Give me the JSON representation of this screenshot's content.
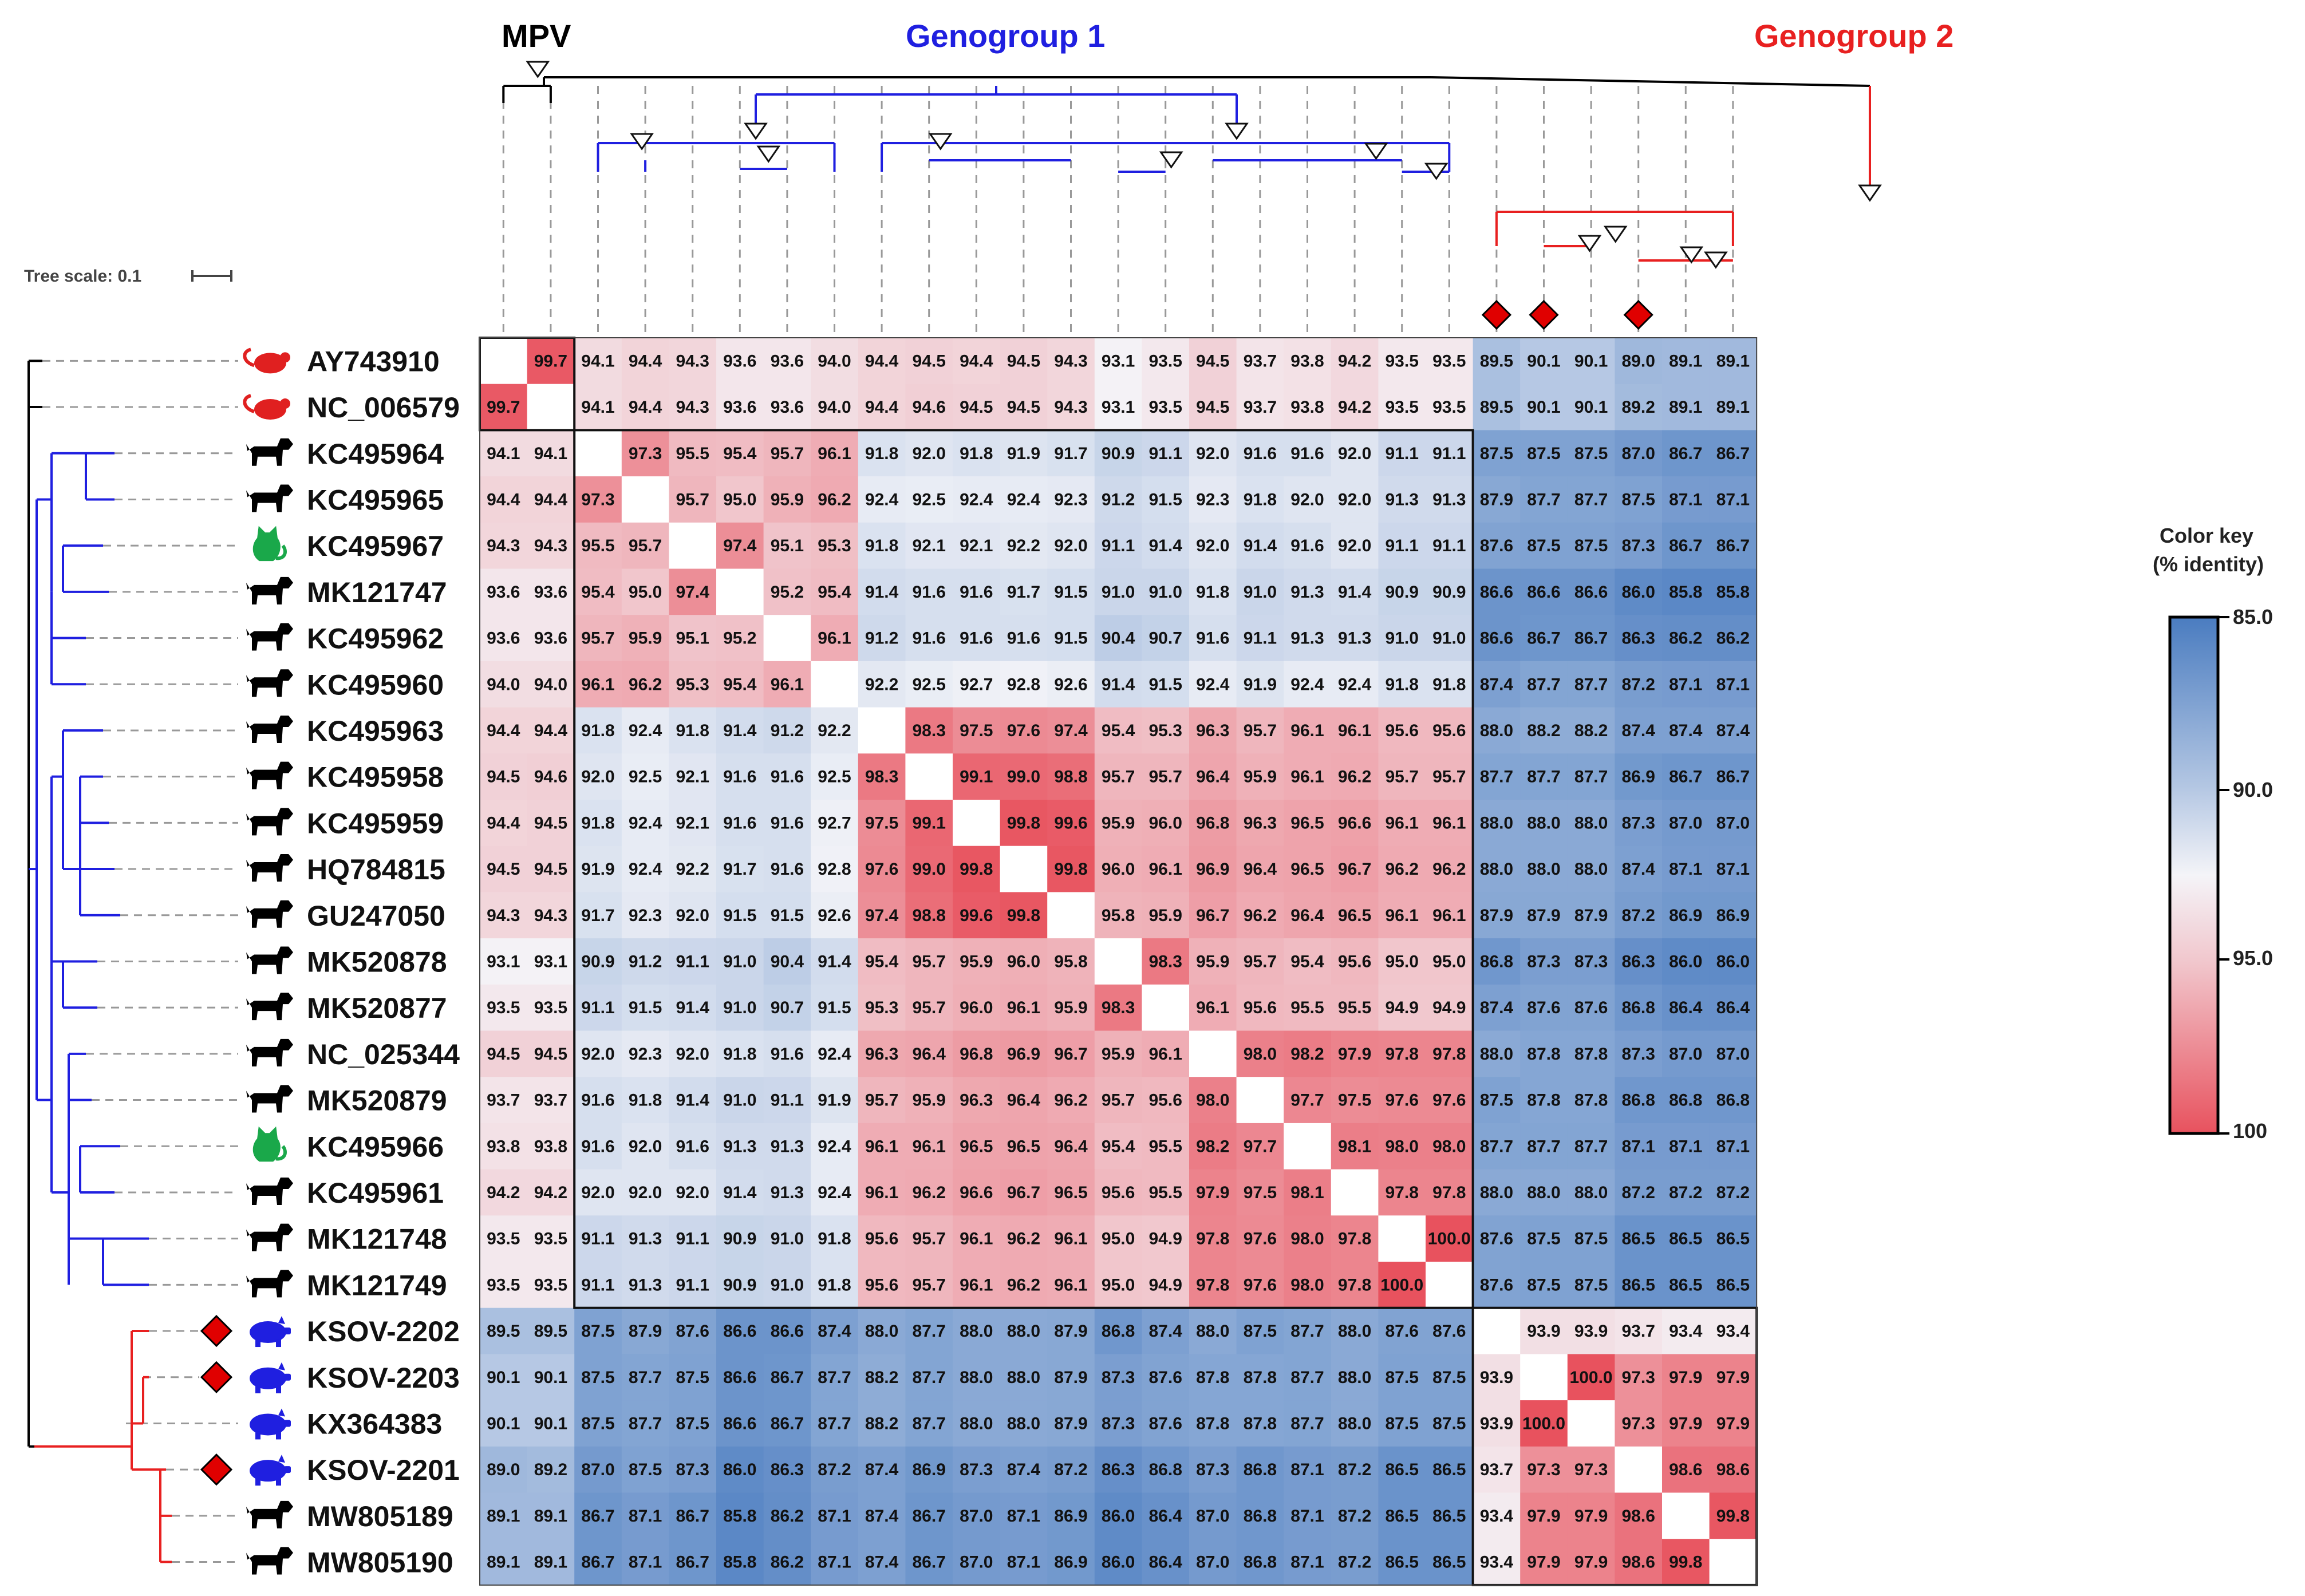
{
  "figure": {
    "clade_labels": {
      "mpv": "MPV",
      "genogroup1": "Genogroup 1",
      "genogroup2": "Genogroup 2"
    },
    "tree_scale_label": "Tree scale: 0.1",
    "color_key": {
      "title_line1": "Color key",
      "title_line2": "(% identity)",
      "ticks": [
        "85.0",
        "90.0",
        "95.0",
        "100"
      ]
    },
    "colors": {
      "mpv": "#000000",
      "genogroup1": "#1f1fe0",
      "genogroup2": "#e82020",
      "high_identity": "#e8525e",
      "mid_identity": "#f4f4f8",
      "low_identity": "#4a7cc0",
      "rodent_icon": "#e02020",
      "dog_icon": "#000000",
      "cat_icon": "#1aa84a",
      "pig_icon": "#1f1fe0",
      "diamond": "#e00000"
    }
  },
  "chart_data": {
    "type": "heatmap",
    "title": "",
    "value_range": [
      85.0,
      100.0
    ],
    "labels": [
      "AY743910",
      "NC_006579",
      "KC495964",
      "KC495965",
      "KC495967",
      "MK121747",
      "KC495962",
      "KC495960",
      "KC495963",
      "KC495958",
      "KC495959",
      "HQ784815",
      "GU247050",
      "MK520878",
      "MK520877",
      "NC_025344",
      "MK520879",
      "KC495966",
      "KC495961",
      "MK121748",
      "MK121749",
      "KSOV-2202",
      "KSOV-2203",
      "KX364383",
      "KSOV-2201",
      "MW805189",
      "MW805190"
    ],
    "host_icons": [
      "rodent-icon",
      "rodent-icon",
      "dog-icon",
      "dog-icon",
      "cat-icon",
      "dog-icon",
      "dog-icon",
      "dog-icon",
      "dog-icon",
      "dog-icon",
      "dog-icon",
      "dog-icon",
      "dog-icon",
      "dog-icon",
      "dog-icon",
      "dog-icon",
      "dog-icon",
      "cat-icon",
      "dog-icon",
      "dog-icon",
      "dog-icon",
      "pig-icon",
      "pig-icon",
      "pig-icon",
      "pig-icon",
      "dog-icon",
      "dog-icon"
    ],
    "diamond_marked": [
      "KSOV-2202",
      "KSOV-2203",
      "KSOV-2201"
    ],
    "groups": [
      {
        "name": "MPV",
        "members": [
          "AY743910",
          "NC_006579"
        ]
      },
      {
        "name": "Genogroup 1",
        "members": [
          "KC495964",
          "KC495965",
          "KC495967",
          "MK121747",
          "KC495962",
          "KC495960",
          "KC495963",
          "KC495958",
          "KC495959",
          "HQ784815",
          "GU247050",
          "MK520878",
          "MK520877",
          "NC_025344",
          "MK520879",
          "KC495966",
          "KC495961",
          "MK121748",
          "MK121749"
        ]
      },
      {
        "name": "Genogroup 2",
        "members": [
          "KSOV-2202",
          "KSOV-2203",
          "KX364383",
          "KSOV-2201",
          "MW805189",
          "MW805190"
        ]
      }
    ],
    "matrix": [
      [
        null,
        99.7,
        94.1,
        94.4,
        94.3,
        93.6,
        93.6,
        94.0,
        94.4,
        94.5,
        94.4,
        94.5,
        94.3,
        93.1,
        93.5,
        94.5,
        93.7,
        93.8,
        94.2,
        93.5,
        93.5,
        89.5,
        90.1,
        90.1,
        89.0,
        89.1,
        89.1
      ],
      [
        99.7,
        null,
        94.1,
        94.4,
        94.3,
        93.6,
        93.6,
        94.0,
        94.4,
        94.6,
        94.5,
        94.5,
        94.3,
        93.1,
        93.5,
        94.5,
        93.7,
        93.8,
        94.2,
        93.5,
        93.5,
        89.5,
        90.1,
        90.1,
        89.2,
        89.1,
        89.1
      ],
      [
        94.1,
        94.1,
        null,
        97.3,
        95.5,
        95.4,
        95.7,
        96.1,
        91.8,
        92.0,
        91.8,
        91.9,
        91.7,
        90.9,
        91.1,
        92.0,
        91.6,
        91.6,
        92.0,
        91.1,
        91.1,
        87.5,
        87.5,
        87.5,
        87.0,
        86.7,
        86.7
      ],
      [
        94.4,
        94.4,
        97.3,
        null,
        95.7,
        95.0,
        95.9,
        96.2,
        92.4,
        92.5,
        92.4,
        92.4,
        92.3,
        91.2,
        91.5,
        92.3,
        91.8,
        92.0,
        92.0,
        91.3,
        91.3,
        87.9,
        87.7,
        87.7,
        87.5,
        87.1,
        87.1
      ],
      [
        94.3,
        94.3,
        95.5,
        95.7,
        null,
        97.4,
        95.1,
        95.3,
        91.8,
        92.1,
        92.1,
        92.2,
        92.0,
        91.1,
        91.4,
        92.0,
        91.4,
        91.6,
        92.0,
        91.1,
        91.1,
        87.6,
        87.5,
        87.5,
        87.3,
        86.7,
        86.7
      ],
      [
        93.6,
        93.6,
        95.4,
        95.0,
        97.4,
        null,
        95.2,
        95.4,
        91.4,
        91.6,
        91.6,
        91.7,
        91.5,
        91.0,
        91.0,
        91.8,
        91.0,
        91.3,
        91.4,
        90.9,
        90.9,
        86.6,
        86.6,
        86.6,
        86.0,
        85.8,
        85.8
      ],
      [
        93.6,
        93.6,
        95.7,
        95.9,
        95.1,
        95.2,
        null,
        96.1,
        91.2,
        91.6,
        91.6,
        91.6,
        91.5,
        90.4,
        90.7,
        91.6,
        91.1,
        91.3,
        91.3,
        91.0,
        91.0,
        86.6,
        86.7,
        86.7,
        86.3,
        86.2,
        86.2
      ],
      [
        94.0,
        94.0,
        96.1,
        96.2,
        95.3,
        95.4,
        96.1,
        null,
        92.2,
        92.5,
        92.7,
        92.8,
        92.6,
        91.4,
        91.5,
        92.4,
        91.9,
        92.4,
        92.4,
        91.8,
        91.8,
        87.4,
        87.7,
        87.7,
        87.2,
        87.1,
        87.1
      ],
      [
        94.4,
        94.4,
        91.8,
        92.4,
        91.8,
        91.4,
        91.2,
        92.2,
        null,
        98.3,
        97.5,
        97.6,
        97.4,
        95.4,
        95.3,
        96.3,
        95.7,
        96.1,
        96.1,
        95.6,
        95.6,
        88.0,
        88.2,
        88.2,
        87.4,
        87.4,
        87.4
      ],
      [
        94.5,
        94.6,
        92.0,
        92.5,
        92.1,
        91.6,
        91.6,
        92.5,
        98.3,
        null,
        99.1,
        99.0,
        98.8,
        95.7,
        95.7,
        96.4,
        95.9,
        96.1,
        96.2,
        95.7,
        95.7,
        87.7,
        87.7,
        87.7,
        86.9,
        86.7,
        86.7
      ],
      [
        94.4,
        94.5,
        91.8,
        92.4,
        92.1,
        91.6,
        91.6,
        92.7,
        97.5,
        99.1,
        null,
        99.8,
        99.6,
        95.9,
        96.0,
        96.8,
        96.3,
        96.5,
        96.6,
        96.1,
        96.1,
        88.0,
        88.0,
        88.0,
        87.3,
        87.0,
        87.0
      ],
      [
        94.5,
        94.5,
        91.9,
        92.4,
        92.2,
        91.7,
        91.6,
        92.8,
        97.6,
        99.0,
        99.8,
        null,
        99.8,
        96.0,
        96.1,
        96.9,
        96.4,
        96.5,
        96.7,
        96.2,
        96.2,
        88.0,
        88.0,
        88.0,
        87.4,
        87.1,
        87.1
      ],
      [
        94.3,
        94.3,
        91.7,
        92.3,
        92.0,
        91.5,
        91.5,
        92.6,
        97.4,
        98.8,
        99.6,
        99.8,
        null,
        95.8,
        95.9,
        96.7,
        96.2,
        96.4,
        96.5,
        96.1,
        96.1,
        87.9,
        87.9,
        87.9,
        87.2,
        86.9,
        86.9
      ],
      [
        93.1,
        93.1,
        90.9,
        91.2,
        91.1,
        91.0,
        90.4,
        91.4,
        95.4,
        95.7,
        95.9,
        96.0,
        95.8,
        null,
        98.3,
        95.9,
        95.7,
        95.4,
        95.6,
        95.0,
        95.0,
        86.8,
        87.3,
        87.3,
        86.3,
        86.0,
        86.0
      ],
      [
        93.5,
        93.5,
        91.1,
        91.5,
        91.4,
        91.0,
        90.7,
        91.5,
        95.3,
        95.7,
        96.0,
        96.1,
        95.9,
        98.3,
        null,
        96.1,
        95.6,
        95.5,
        95.5,
        94.9,
        94.9,
        87.4,
        87.6,
        87.6,
        86.8,
        86.4,
        86.4
      ],
      [
        94.5,
        94.5,
        92.0,
        92.3,
        92.0,
        91.8,
        91.6,
        92.4,
        96.3,
        96.4,
        96.8,
        96.9,
        96.7,
        95.9,
        96.1,
        null,
        98.0,
        98.2,
        97.9,
        97.8,
        97.8,
        88.0,
        87.8,
        87.8,
        87.3,
        87.0,
        87.0
      ],
      [
        93.7,
        93.7,
        91.6,
        91.8,
        91.4,
        91.0,
        91.1,
        91.9,
        95.7,
        95.9,
        96.3,
        96.4,
        96.2,
        95.7,
        95.6,
        98.0,
        null,
        97.7,
        97.5,
        97.6,
        97.6,
        87.5,
        87.8,
        87.8,
        86.8,
        86.8,
        86.8
      ],
      [
        93.8,
        93.8,
        91.6,
        92.0,
        91.6,
        91.3,
        91.3,
        92.4,
        96.1,
        96.1,
        96.5,
        96.5,
        96.4,
        95.4,
        95.5,
        98.2,
        97.7,
        null,
        98.1,
        98.0,
        98.0,
        87.7,
        87.7,
        87.7,
        87.1,
        87.1,
        87.1
      ],
      [
        94.2,
        94.2,
        92.0,
        92.0,
        92.0,
        91.4,
        91.3,
        92.4,
        96.1,
        96.2,
        96.6,
        96.7,
        96.5,
        95.6,
        95.5,
        97.9,
        97.5,
        98.1,
        null,
        97.8,
        97.8,
        88.0,
        88.0,
        88.0,
        87.2,
        87.2,
        87.2
      ],
      [
        93.5,
        93.5,
        91.1,
        91.3,
        91.1,
        90.9,
        91.0,
        91.8,
        95.6,
        95.7,
        96.1,
        96.2,
        96.1,
        95.0,
        94.9,
        97.8,
        97.6,
        98.0,
        97.8,
        null,
        100.0,
        87.6,
        87.5,
        87.5,
        86.5,
        86.5,
        86.5
      ],
      [
        93.5,
        93.5,
        91.1,
        91.3,
        91.1,
        90.9,
        91.0,
        91.8,
        95.6,
        95.7,
        96.1,
        96.2,
        96.1,
        95.0,
        94.9,
        97.8,
        97.6,
        98.0,
        97.8,
        100.0,
        null,
        87.6,
        87.5,
        87.5,
        86.5,
        86.5,
        86.5
      ],
      [
        89.5,
        89.5,
        87.5,
        87.9,
        87.6,
        86.6,
        86.6,
        87.4,
        88.0,
        87.7,
        88.0,
        88.0,
        87.9,
        86.8,
        87.4,
        88.0,
        87.5,
        87.7,
        88.0,
        87.6,
        87.6,
        null,
        93.9,
        93.9,
        93.7,
        93.4,
        93.4
      ],
      [
        90.1,
        90.1,
        87.5,
        87.7,
        87.5,
        86.6,
        86.7,
        87.7,
        88.2,
        87.7,
        88.0,
        88.0,
        87.9,
        87.3,
        87.6,
        87.8,
        87.8,
        87.7,
        88.0,
        87.5,
        87.5,
        93.9,
        null,
        100.0,
        97.3,
        97.9,
        97.9
      ],
      [
        90.1,
        90.1,
        87.5,
        87.7,
        87.5,
        86.6,
        86.7,
        87.7,
        88.2,
        87.7,
        88.0,
        88.0,
        87.9,
        87.3,
        87.6,
        87.8,
        87.8,
        87.7,
        88.0,
        87.5,
        87.5,
        93.9,
        100.0,
        null,
        97.3,
        97.9,
        97.9
      ],
      [
        89.0,
        89.2,
        87.0,
        87.5,
        87.3,
        86.0,
        86.3,
        87.2,
        87.4,
        86.9,
        87.3,
        87.4,
        87.2,
        86.3,
        86.8,
        87.3,
        86.8,
        87.1,
        87.2,
        86.5,
        86.5,
        93.7,
        97.3,
        97.3,
        null,
        98.6,
        98.6
      ],
      [
        89.1,
        89.1,
        86.7,
        87.1,
        86.7,
        85.8,
        86.2,
        87.1,
        87.4,
        86.7,
        87.0,
        87.1,
        86.9,
        86.0,
        86.4,
        87.0,
        86.8,
        87.1,
        87.2,
        86.5,
        86.5,
        93.4,
        97.9,
        97.9,
        98.6,
        null,
        99.8
      ],
      [
        89.1,
        89.1,
        86.7,
        87.1,
        86.7,
        85.8,
        86.2,
        87.1,
        87.4,
        86.7,
        87.0,
        87.1,
        86.9,
        86.0,
        86.4,
        87.0,
        86.8,
        87.1,
        87.2,
        86.5,
        86.5,
        93.4,
        97.9,
        97.9,
        98.6,
        99.8,
        null
      ]
    ]
  }
}
